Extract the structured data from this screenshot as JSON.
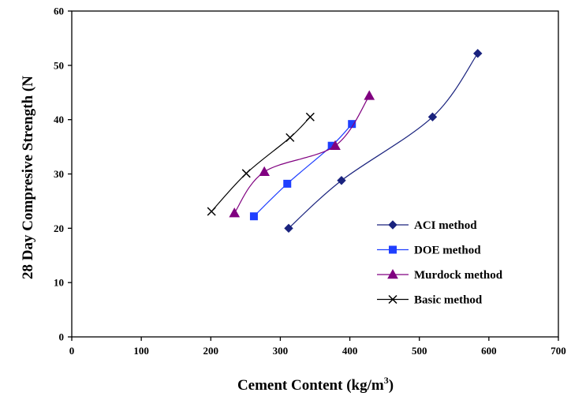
{
  "chart_data": {
    "type": "line",
    "title": "",
    "xlabel": "Cement Content (kg/m³)",
    "xlabel_main": "Cement Content (kg/m",
    "xlabel_sup": "3",
    "xlabel_end": ")",
    "ylabel": "28 Day Compresive Strength (N",
    "xlim": [
      0,
      700
    ],
    "ylim": [
      0,
      60
    ],
    "x_ticks": [
      0,
      100,
      200,
      300,
      400,
      500,
      600,
      700
    ],
    "y_ticks": [
      0,
      10,
      20,
      30,
      40,
      50,
      60
    ],
    "grid": false,
    "legend_position": "lower-right",
    "series": [
      {
        "name": "ACI method",
        "marker": "diamond",
        "color": "#1a237e",
        "x": [
          312,
          388,
          519,
          584
        ],
        "y": [
          20,
          28.8,
          40.5,
          52.2
        ]
      },
      {
        "name": "DOE method",
        "marker": "square",
        "color": "#1f3fff",
        "x": [
          262,
          310,
          374,
          403
        ],
        "y": [
          22.2,
          28.2,
          35.2,
          39.2
        ]
      },
      {
        "name": "Murdock method",
        "marker": "triangle",
        "color": "#800080",
        "x": [
          234,
          277,
          379,
          428
        ],
        "y": [
          22.8,
          30.4,
          35.2,
          44.4
        ]
      },
      {
        "name": "Basic method",
        "marker": "x",
        "color": "#000000",
        "x": [
          201,
          251,
          314,
          343
        ],
        "y": [
          23.1,
          30.1,
          36.7,
          40.5
        ]
      }
    ]
  }
}
